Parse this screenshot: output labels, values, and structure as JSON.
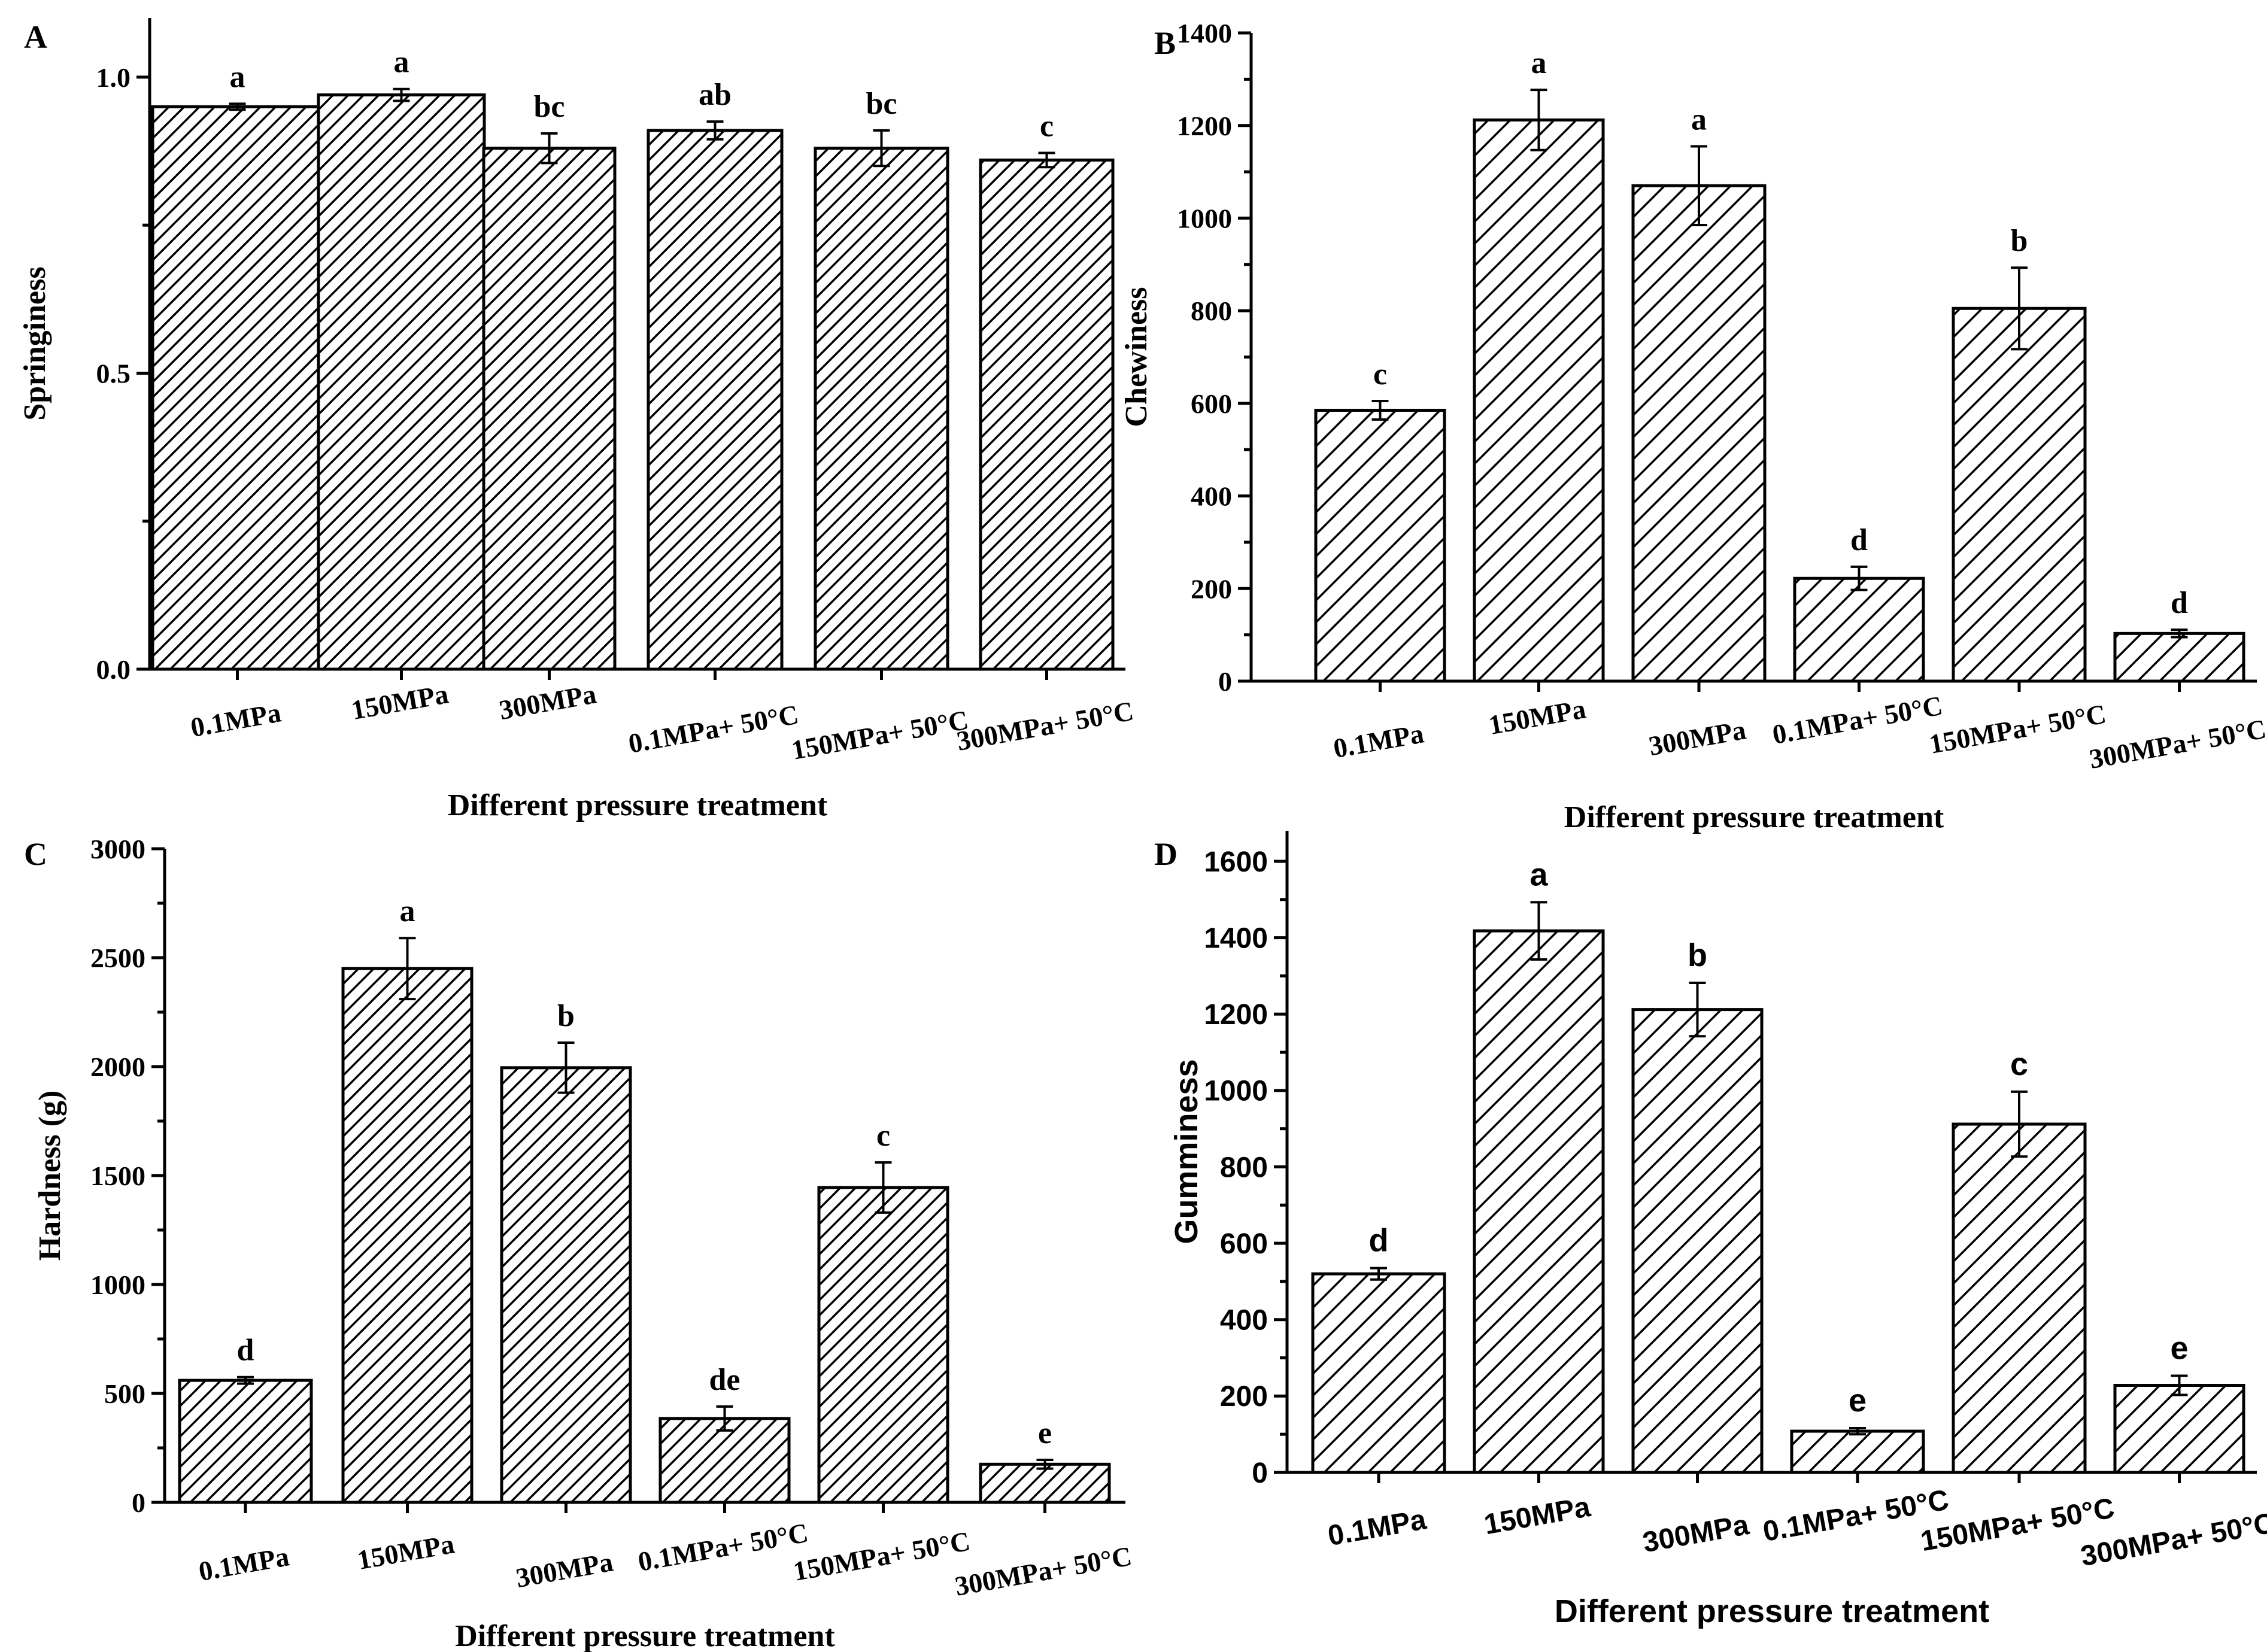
{
  "chart_data": [
    {
      "panel": "A",
      "type": "bar",
      "categories": [
        "0.1MPa",
        "150MPa",
        "300MPa",
        "0.1MPa+ 50°C",
        "150MPa+ 50°C",
        "300MPa+ 50°C"
      ],
      "values": [
        0.95,
        0.97,
        0.88,
        0.91,
        0.88,
        0.86
      ],
      "errors": [
        0.005,
        0.01,
        0.025,
        0.015,
        0.03,
        0.012
      ],
      "significance": [
        "a",
        "a",
        "bc",
        "ab",
        "bc",
        "c"
      ],
      "ylabel": "Springiness",
      "xlabel": "Different pressure treatment",
      "ylim": [
        0,
        1.1
      ],
      "yticks": [
        0.0,
        0.5,
        1.0
      ],
      "ytick_labels": [
        "0.0",
        "0.5",
        "1.0"
      ],
      "hatch": "dense diagonal"
    },
    {
      "panel": "B",
      "type": "bar",
      "categories": [
        "0.1MPa",
        "150MPa",
        "300MPa",
        "0.1MPa+ 50°C",
        "150MPa+ 50°C",
        "300MPa+ 50°C"
      ],
      "values": [
        585,
        1212,
        1070,
        222,
        805,
        103
      ],
      "errors": [
        20,
        65,
        85,
        25,
        88,
        8
      ],
      "significance": [
        "c",
        "a",
        "a",
        "d",
        "b",
        "d"
      ],
      "ylabel": "Chewiness",
      "xlabel": "Different pressure treatment",
      "ylim": [
        0,
        1400
      ],
      "yticks": [
        0,
        200,
        400,
        600,
        800,
        1000,
        1200,
        1400
      ],
      "ytick_labels": [
        "0",
        "200",
        "400",
        "600",
        "800",
        "1000",
        "1200",
        "1400"
      ],
      "hatch": "wide diagonal"
    },
    {
      "panel": "C",
      "type": "bar",
      "categories": [
        "0.1MPa",
        "150MPa",
        "300MPa",
        "0.1MPa+ 50°C",
        "150MPa+ 50°C",
        "300MPa+ 50°C"
      ],
      "values": [
        560,
        2450,
        1995,
        385,
        1445,
        175
      ],
      "errors": [
        15,
        140,
        115,
        55,
        115,
        20
      ],
      "significance": [
        "d",
        "a",
        "b",
        "de",
        "c",
        "e"
      ],
      "ylabel": "Hardness (g)",
      "xlabel": "Different pressure treatment",
      "ylim": [
        0,
        3000
      ],
      "yticks": [
        0,
        500,
        1000,
        1500,
        2000,
        2500,
        3000
      ],
      "ytick_labels": [
        "0",
        "500",
        "1000",
        "1500",
        "2000",
        "2500",
        "3000"
      ],
      "hatch": "dense diagonal"
    },
    {
      "panel": "D",
      "type": "bar",
      "categories": [
        "0.1MPa",
        "150MPa",
        "300MPa",
        "0.1MPa+ 50°C",
        "150MPa+ 50°C",
        "300MPa+ 50°C"
      ],
      "values": [
        520,
        1418,
        1212,
        108,
        912,
        228
      ],
      "errors": [
        15,
        75,
        70,
        8,
        85,
        25
      ],
      "significance": [
        "d",
        "a",
        "b",
        "e",
        "c",
        "e"
      ],
      "ylabel": "Gumminess",
      "xlabel": "Different pressure treatment",
      "ylim": [
        0,
        1680
      ],
      "yticks": [
        0,
        200,
        400,
        600,
        800,
        1000,
        1200,
        1400,
        1600
      ],
      "ytick_labels": [
        "0",
        "200",
        "400",
        "600",
        "800",
        "1000",
        "1200",
        "1400",
        "1600"
      ],
      "hatch": "wide diagonal"
    }
  ]
}
